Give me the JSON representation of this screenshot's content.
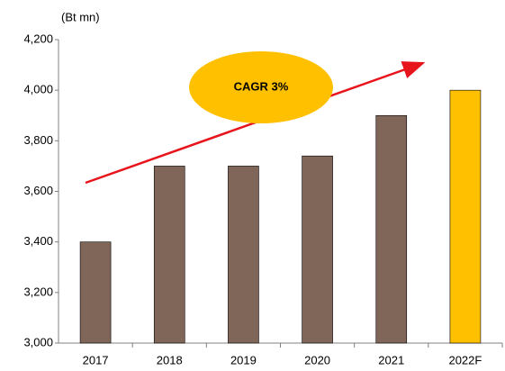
{
  "chart_data": {
    "type": "bar",
    "y_axis_label": "(Bt mn)",
    "annotation": "CAGR 3%",
    "categories": [
      "2017",
      "2018",
      "2019",
      "2020",
      "2021",
      "2022F"
    ],
    "values": [
      3400,
      3700,
      3700,
      3740,
      3900,
      4000
    ],
    "colors": [
      "#7f6659",
      "#7f6659",
      "#7f6659",
      "#7f6659",
      "#7f6659",
      "#ffc000"
    ],
    "ylim": [
      3000,
      4200
    ],
    "yticks": [
      {
        "value": 3000,
        "label": "3,000"
      },
      {
        "value": 3200,
        "label": "3,200"
      },
      {
        "value": 3400,
        "label": "3,400"
      },
      {
        "value": 3600,
        "label": "3,600"
      },
      {
        "value": 3800,
        "label": "3,800"
      },
      {
        "value": 4000,
        "label": "4,000"
      },
      {
        "value": 4200,
        "label": "4,200"
      }
    ],
    "grid": false
  }
}
